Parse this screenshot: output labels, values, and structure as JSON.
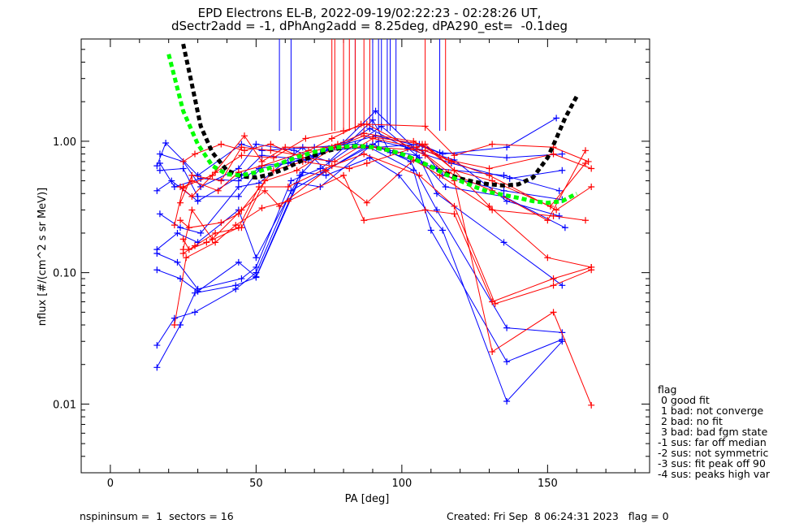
{
  "title_line1": "EPD Electrons EL-B, 2022-09-19/02:22:23 - 02:28:26 UT,",
  "title_line2": "dSectr2add = -1, dPhAng2add = 8.25deg, dPA290_est=  -0.1deg",
  "footer_left": "nspininsum =  1  sectors = 16",
  "footer_right": "Created: Fri Sep  8 06:24:31 2023   flag = 0",
  "legend": {
    "title": "flag",
    "items": [
      " 0 good fit",
      " 1 bad: not converge",
      " 2 bad: no fit",
      " 3 bad: bad fgm state",
      "-1 sus: far off median",
      "-2 sus: not symmetric",
      "-3 sus: fit peak off 90",
      "-4 sus: peaks high var"
    ]
  },
  "colors": {
    "blue": "#0000ff",
    "red": "#ff0000",
    "fit_black": "#000000",
    "fit_green": "#00ff00"
  },
  "chart_data": {
    "type": "line",
    "xlabel": "PA [deg]",
    "ylabel": "nflux [#/(cm^2 s sr MeV)]",
    "xlim": [
      -10,
      185
    ],
    "ylim": [
      0.003,
      6
    ],
    "yscale": "log",
    "x_ticks": [
      0,
      50,
      100,
      150
    ],
    "x_tick_labels": [
      "0",
      "50",
      "100",
      "150"
    ],
    "y_ticks": [
      0.01,
      0.1,
      1.0
    ],
    "y_tick_labels": [
      "0.01",
      "0.10",
      "1.00"
    ],
    "grid": false,
    "series": [
      {
        "color": "blue",
        "x": [
          16,
          19,
          30,
          45,
          52,
          70,
          84,
          92,
          106,
          113,
          136,
          155
        ],
        "y": [
          0.65,
          0.97,
          0.55,
          0.95,
          0.85,
          0.9,
          0.95,
          0.9,
          0.95,
          0.82,
          0.75,
          0.8
        ]
      },
      {
        "color": "blue",
        "x": [
          17,
          25,
          31,
          44,
          50,
          63,
          75,
          90,
          96,
          112,
          135,
          154
        ],
        "y": [
          0.8,
          0.7,
          0.45,
          0.62,
          0.95,
          0.85,
          0.7,
          1.45,
          0.82,
          0.62,
          0.55,
          0.42
        ]
      },
      {
        "color": "blue",
        "x": [
          16,
          21,
          30,
          45,
          52,
          68,
          80,
          91,
          104,
          118,
          136,
          154
        ],
        "y": [
          0.42,
          0.5,
          0.35,
          0.55,
          0.78,
          0.72,
          0.98,
          1.7,
          0.9,
          0.72,
          0.35,
          0.27
        ]
      },
      {
        "color": "blue",
        "x": [
          17,
          24,
          31,
          44,
          51,
          66,
          74,
          92,
          107,
          114,
          135,
          155
        ],
        "y": [
          0.28,
          0.22,
          0.2,
          0.45,
          0.48,
          0.9,
          0.6,
          1.0,
          0.85,
          0.55,
          0.42,
          0.36
        ]
      },
      {
        "color": "blue",
        "x": [
          16,
          23,
          30,
          44,
          50,
          65,
          73,
          90,
          105,
          115,
          135,
          156
        ],
        "y": [
          0.15,
          0.2,
          0.17,
          0.3,
          0.13,
          0.55,
          0.85,
          0.9,
          0.78,
          0.45,
          0.38,
          0.22
        ]
      },
      {
        "color": "blue",
        "x": [
          16,
          23,
          30,
          45,
          50,
          62,
          72,
          93,
          106,
          112,
          135,
          155
        ],
        "y": [
          0.14,
          0.12,
          0.075,
          0.09,
          0.11,
          0.5,
          0.62,
          1.3,
          0.75,
          0.4,
          0.17,
          0.08
        ]
      },
      {
        "color": "blue",
        "x": [
          16,
          24,
          30,
          44,
          50,
          64,
          72,
          90,
          103,
          112,
          136,
          155
        ],
        "y": [
          0.105,
          0.09,
          0.072,
          0.12,
          0.093,
          0.48,
          0.45,
          0.95,
          0.7,
          0.3,
          0.038,
          0.035
        ]
      },
      {
        "color": "blue",
        "x": [
          16,
          22,
          29,
          43,
          50,
          62,
          73,
          88,
          104,
          110,
          136,
          155
        ],
        "y": [
          0.028,
          0.045,
          0.05,
          0.075,
          0.1,
          0.42,
          0.58,
          0.92,
          0.6,
          0.21,
          0.021,
          0.031
        ]
      },
      {
        "color": "blue",
        "x": [
          16,
          24,
          29,
          43,
          50,
          66,
          74,
          89,
          99,
          114,
          136,
          155
        ],
        "y": [
          0.019,
          0.04,
          0.07,
          0.08,
          0.092,
          0.58,
          0.55,
          0.75,
          0.55,
          0.21,
          0.0105,
          0.03
        ]
      },
      {
        "color": "blue",
        "x": [
          17,
          25,
          30,
          44,
          52,
          67,
          75,
          91,
          108,
          114,
          136,
          153
        ],
        "y": [
          0.6,
          0.62,
          0.38,
          0.38,
          0.65,
          0.72,
          0.88,
          1.1,
          0.9,
          0.8,
          0.9,
          1.5
        ]
      },
      {
        "color": "blue",
        "x": [
          17,
          22,
          31,
          44,
          51,
          61,
          78,
          89,
          102,
          117,
          137,
          155
        ],
        "y": [
          0.68,
          0.45,
          0.52,
          0.5,
          0.62,
          0.68,
          0.9,
          1.25,
          0.88,
          0.68,
          0.52,
          0.6
        ]
      },
      {
        "color": "red",
        "x": [
          22,
          25,
          35,
          46,
          52,
          60,
          76,
          90,
          108,
          117,
          130,
          153,
          165
        ],
        "y": [
          0.23,
          0.45,
          0.55,
          1.1,
          0.7,
          0.9,
          0.9,
          0.9,
          0.85,
          0.7,
          0.55,
          0.3,
          0.45
        ]
      },
      {
        "color": "red",
        "x": [
          24,
          28,
          38,
          45,
          55,
          65,
          78,
          87,
          104,
          116,
          130,
          152,
          165
        ],
        "y": [
          0.34,
          0.55,
          0.5,
          0.9,
          0.85,
          0.78,
          0.95,
          1.15,
          1.0,
          0.72,
          0.62,
          0.8,
          0.62
        ]
      },
      {
        "color": "red",
        "x": [
          25,
          28,
          37,
          44,
          52,
          68,
          76,
          86,
          108,
          118,
          131,
          152,
          164
        ],
        "y": [
          0.44,
          0.5,
          0.42,
          0.58,
          0.65,
          0.85,
          1.05,
          1.35,
          1.3,
          0.78,
          0.95,
          0.9,
          0.7
        ]
      },
      {
        "color": "red",
        "x": [
          25,
          29,
          36,
          45,
          53,
          64,
          77,
          87,
          107,
          118,
          131,
          151,
          163
        ],
        "y": [
          0.14,
          0.16,
          0.2,
          0.22,
          0.5,
          0.6,
          0.9,
          1.1,
          0.95,
          0.6,
          0.5,
          0.32,
          0.68
        ]
      },
      {
        "color": "red",
        "x": [
          25,
          28,
          35,
          45,
          53,
          58,
          74,
          88,
          104,
          113,
          131,
          152,
          163
        ],
        "y": [
          0.15,
          0.3,
          0.18,
          0.3,
          0.42,
          0.32,
          0.6,
          0.34,
          0.72,
          0.55,
          0.3,
          0.27,
          0.25
        ]
      },
      {
        "color": "red",
        "x": [
          24,
          27,
          38,
          44,
          56,
          66,
          82,
          88,
          108,
          118,
          130,
          150,
          165
        ],
        "y": [
          0.25,
          0.22,
          0.24,
          0.28,
          0.6,
          0.7,
          0.62,
          0.68,
          0.95,
          0.6,
          0.32,
          0.13,
          0.11
        ]
      },
      {
        "color": "red",
        "x": [
          25,
          27,
          33,
          44,
          51,
          61,
          76,
          87,
          106,
          118,
          132,
          152,
          165
        ],
        "y": [
          0.18,
          0.15,
          0.17,
          0.22,
          0.45,
          0.45,
          0.65,
          0.8,
          0.55,
          0.32,
          0.058,
          0.08,
          0.105
        ]
      },
      {
        "color": "red",
        "x": [
          22,
          26,
          36,
          43,
          52,
          61,
          80,
          87,
          108,
          118,
          131,
          152,
          165
        ],
        "y": [
          0.04,
          0.13,
          0.17,
          0.23,
          0.31,
          0.35,
          0.55,
          0.25,
          0.3,
          0.28,
          0.06,
          0.09,
          0.11
        ]
      },
      {
        "color": "red",
        "x": [
          24,
          28,
          36,
          45,
          56,
          67,
          80,
          88,
          108,
          118,
          131,
          152,
          165
        ],
        "y": [
          0.45,
          0.38,
          0.58,
          0.78,
          0.75,
          1.05,
          1.2,
          1.35,
          0.78,
          0.5,
          0.025,
          0.05,
          0.0098
        ]
      },
      {
        "color": "red",
        "x": [
          25,
          29,
          38,
          46,
          55,
          66,
          77,
          90,
          105,
          116,
          131,
          150,
          163
        ],
        "y": [
          0.7,
          0.8,
          0.95,
          0.85,
          0.95,
          0.75,
          0.7,
          1.05,
          0.9,
          0.58,
          0.42,
          0.25,
          0.85
        ]
      }
    ],
    "error_bars": [
      {
        "color": "blue",
        "x": 58,
        "y_from": 1.2
      },
      {
        "color": "blue",
        "x": 62,
        "y_from": 1.2
      },
      {
        "color": "blue",
        "x": 84,
        "y_from": 1.2
      },
      {
        "color": "blue",
        "x": 90,
        "y_from": 1.2
      },
      {
        "color": "blue",
        "x": 92,
        "y_from": 1.2
      },
      {
        "color": "blue",
        "x": 93,
        "y_from": 1.2
      },
      {
        "color": "blue",
        "x": 95,
        "y_from": 1.2
      },
      {
        "color": "blue",
        "x": 96,
        "y_from": 1.2
      },
      {
        "color": "blue",
        "x": 98,
        "y_from": 1.2
      },
      {
        "color": "blue",
        "x": 113,
        "y_from": 1.2
      },
      {
        "color": "red",
        "x": 76,
        "y_from": 1.2
      },
      {
        "color": "red",
        "x": 77,
        "y_from": 1.2
      },
      {
        "color": "red",
        "x": 80,
        "y_from": 1.2
      },
      {
        "color": "red",
        "x": 82,
        "y_from": 1.2
      },
      {
        "color": "red",
        "x": 84,
        "y_from": 1.2
      },
      {
        "color": "red",
        "x": 87,
        "y_from": 1.2
      },
      {
        "color": "red",
        "x": 89,
        "y_from": 1.2
      },
      {
        "color": "red",
        "x": 108,
        "y_from": 1.2
      },
      {
        "color": "red",
        "x": 115,
        "y_from": 1.2
      }
    ],
    "fits": [
      {
        "color": "fit_black",
        "x": [
          25,
          28,
          31,
          35,
          40,
          45,
          50,
          55,
          60,
          65,
          70,
          75,
          80,
          85,
          90,
          95,
          100,
          105,
          110,
          115,
          120,
          125,
          130,
          135,
          140,
          145,
          150,
          153,
          156,
          160
        ],
        "y": [
          5.5,
          2.7,
          1.3,
          0.82,
          0.6,
          0.54,
          0.53,
          0.56,
          0.62,
          0.7,
          0.78,
          0.85,
          0.9,
          0.92,
          0.9,
          0.86,
          0.8,
          0.72,
          0.64,
          0.57,
          0.52,
          0.49,
          0.47,
          0.46,
          0.47,
          0.53,
          0.75,
          1.05,
          1.5,
          2.2
        ]
      },
      {
        "color": "fit_green",
        "x": [
          20,
          25,
          30,
          35,
          40,
          45,
          50,
          55,
          60,
          65,
          70,
          75,
          80,
          85,
          90,
          95,
          100,
          105,
          110,
          115,
          120,
          125,
          130,
          135,
          140,
          145,
          150,
          155,
          160
        ],
        "y": [
          4.6,
          1.7,
          0.95,
          0.65,
          0.56,
          0.55,
          0.58,
          0.63,
          0.7,
          0.77,
          0.83,
          0.88,
          0.91,
          0.92,
          0.9,
          0.86,
          0.8,
          0.72,
          0.64,
          0.56,
          0.5,
          0.45,
          0.41,
          0.39,
          0.37,
          0.35,
          0.34,
          0.35,
          0.4
        ]
      }
    ]
  }
}
